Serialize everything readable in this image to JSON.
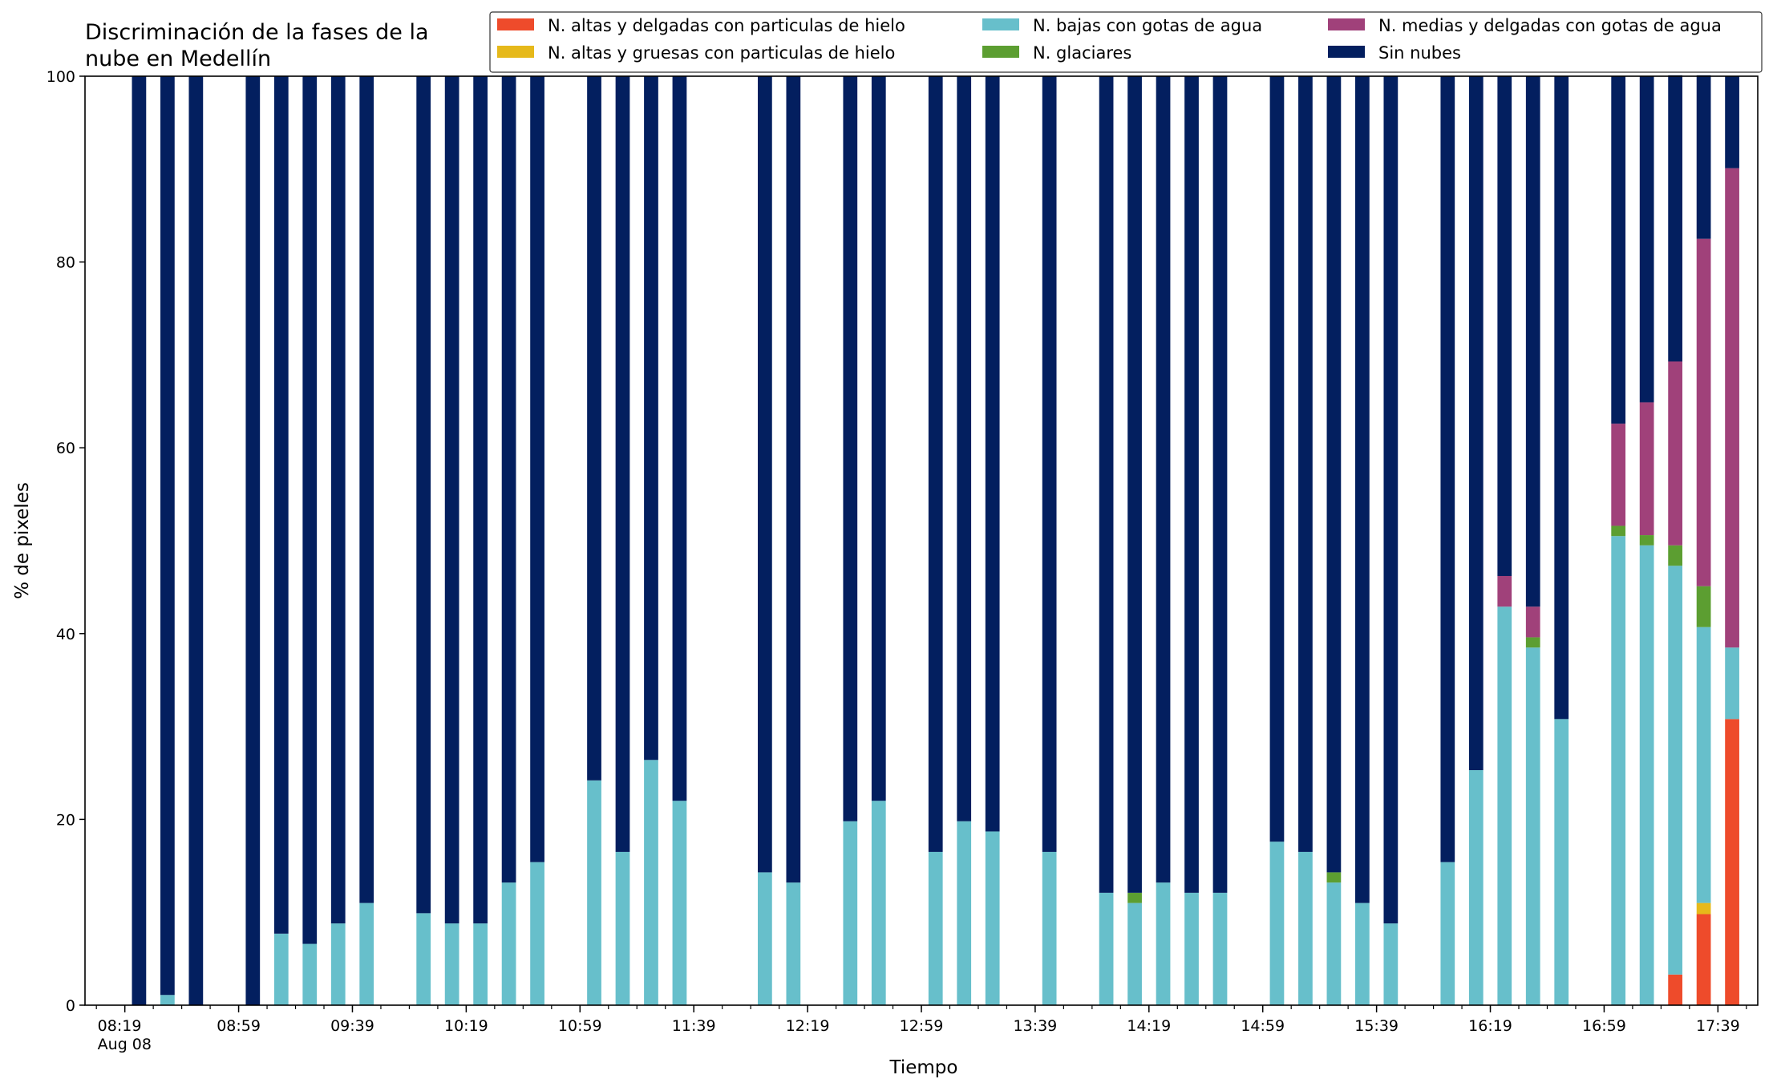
{
  "chart_data": {
    "type": "bar",
    "stacked": true,
    "title": "Discriminación de la fases de la\nnube en Medellín",
    "xlabel": "Tiempo",
    "ylabel": "% de pixeles",
    "ylim": [
      0,
      100
    ],
    "yticks": [
      0,
      20,
      40,
      60,
      80,
      100
    ],
    "xlim_minutes": [
      485,
      1073
    ],
    "x_tick_labels": [
      {
        "t": 499,
        "label": "08:19",
        "sub": "Aug 08"
      },
      {
        "t": 539,
        "label": "08:59"
      },
      {
        "t": 579,
        "label": "09:39"
      },
      {
        "t": 619,
        "label": "10:19"
      },
      {
        "t": 659,
        "label": "10:59"
      },
      {
        "t": 699,
        "label": "11:39"
      },
      {
        "t": 739,
        "label": "12:19"
      },
      {
        "t": 779,
        "label": "12:59"
      },
      {
        "t": 819,
        "label": "13:39"
      },
      {
        "t": 859,
        "label": "14:19"
      },
      {
        "t": 899,
        "label": "14:59"
      },
      {
        "t": 939,
        "label": "15:39"
      },
      {
        "t": 979,
        "label": "16:19"
      },
      {
        "t": 1019,
        "label": "16:59"
      },
      {
        "t": 1059,
        "label": "17:39"
      }
    ],
    "x_minor_tick_step_minutes": 10,
    "bar_width_minutes": 5,
    "legend": {
      "placement": "top-right",
      "ncol": 3
    },
    "series": [
      {
        "name": "N. altas y delgadas con particulas de hielo",
        "color": "#ee4b2b"
      },
      {
        "name": "N. altas y gruesas con particulas de hielo",
        "color": "#e6b91a"
      },
      {
        "name": "N. bajas con gotas de agua",
        "color": "#67bfcb"
      },
      {
        "name": "N. glaciares",
        "color": "#5c9e31"
      },
      {
        "name": "N. medias y delgadas con gotas de agua",
        "color": "#a0417a"
      },
      {
        "name": "Sin nubes",
        "color": "#031f5f"
      }
    ],
    "x_minutes": [
      504,
      514,
      524,
      544,
      554,
      564,
      574,
      584,
      604,
      614,
      624,
      634,
      644,
      664,
      674,
      684,
      694,
      724,
      734,
      754,
      764,
      784,
      794,
      804,
      824,
      844,
      854,
      864,
      874,
      884,
      904,
      914,
      924,
      934,
      944,
      964,
      974,
      984,
      994,
      1004,
      1024,
      1034,
      1044,
      1054,
      1064
    ],
    "values": {
      "N. altas y delgadas con particulas de hielo": [
        0,
        0,
        0,
        0,
        0,
        0,
        0,
        0,
        0,
        0,
        0,
        0,
        0,
        0,
        0,
        0,
        0,
        0,
        0,
        0,
        0,
        0,
        0,
        0,
        0,
        0,
        0,
        0,
        0,
        0,
        0,
        0,
        0,
        0,
        0,
        0,
        0,
        0,
        0,
        0,
        0,
        0,
        3.3,
        9.8,
        30.8
      ],
      "N. altas y gruesas con particulas de hielo": [
        0,
        0,
        0,
        0,
        0,
        0,
        0,
        0,
        0,
        0,
        0,
        0,
        0,
        0,
        0,
        0,
        0,
        0,
        0,
        0,
        0,
        0,
        0,
        0,
        0,
        0,
        0,
        0,
        0,
        0,
        0,
        0,
        0,
        0,
        0,
        0,
        0,
        0,
        0,
        0,
        0,
        0,
        0,
        1.2,
        0
      ],
      "N. bajas con gotas de agua": [
        0,
        1.1,
        0,
        0,
        7.7,
        6.6,
        8.8,
        11,
        9.9,
        8.8,
        8.8,
        13.2,
        15.4,
        24.2,
        16.5,
        26.4,
        22,
        14.3,
        13.2,
        19.8,
        22,
        16.5,
        19.8,
        18.7,
        16.5,
        12.1,
        11,
        13.2,
        12.1,
        12.1,
        17.6,
        16.5,
        13.2,
        11,
        8.8,
        15.4,
        25.3,
        42.9,
        38.5,
        30.8,
        50.5,
        49.5,
        44,
        29.7,
        7.7
      ],
      "N. glaciares": [
        0,
        0,
        0,
        0,
        0,
        0,
        0,
        0,
        0,
        0,
        0,
        0,
        0,
        0,
        0,
        0,
        0,
        0,
        0,
        0,
        0,
        0,
        0,
        0,
        0,
        0,
        1.1,
        0,
        0,
        0,
        0,
        0,
        1.1,
        0,
        0,
        0,
        0,
        0,
        1.1,
        0,
        1.1,
        1.1,
        2.2,
        4.4,
        0
      ],
      "N. medias y delgadas con gotas de agua": [
        0,
        0,
        0,
        0,
        0,
        0,
        0,
        0,
        0,
        0,
        0,
        0,
        0,
        0,
        0,
        0,
        0,
        0,
        0,
        0,
        0,
        0,
        0,
        0,
        0,
        0,
        0,
        0,
        0,
        0,
        0,
        0,
        0,
        0,
        0,
        0,
        0,
        3.3,
        3.3,
        0,
        11,
        14.3,
        19.8,
        37.4,
        51.6
      ],
      "Sin nubes": [
        100,
        98.9,
        100,
        100,
        92.3,
        93.4,
        91.2,
        89,
        90.1,
        91.2,
        91.2,
        86.8,
        84.6,
        75.8,
        83.5,
        73.6,
        78,
        85.7,
        86.8,
        80.2,
        78,
        83.5,
        80.2,
        81.3,
        83.5,
        87.9,
        87.9,
        86.8,
        87.9,
        87.9,
        82.4,
        83.5,
        85.7,
        89,
        91.2,
        84.6,
        74.7,
        53.8,
        57.1,
        69.2,
        37.4,
        35.1,
        30.8,
        17.6,
        9.9
      ]
    }
  }
}
